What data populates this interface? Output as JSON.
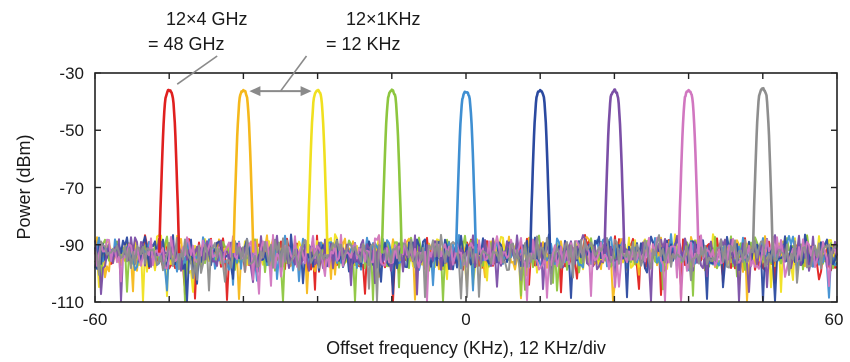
{
  "chart_data": {
    "type": "line",
    "xlabel": "Offset frequency (KHz), 12 KHz/div",
    "ylabel": "Power (dBm)",
    "xlim": [
      -60,
      60
    ],
    "ylim": [
      -110,
      -30
    ],
    "xticks": [
      -60,
      0,
      60
    ],
    "yticks": [
      -30,
      -50,
      -70,
      -90,
      -110
    ],
    "noise_floor_dbm": -93,
    "grid": false,
    "legend": "none",
    "series": [
      {
        "center_khz": -48,
        "peak_dbm": -36,
        "color": "#e0201f"
      },
      {
        "center_khz": -36,
        "peak_dbm": -36,
        "color": "#f5b81c"
      },
      {
        "center_khz": -24,
        "peak_dbm": -36,
        "color": "#f0e020"
      },
      {
        "center_khz": -12,
        "peak_dbm": -36,
        "color": "#8dc63f"
      },
      {
        "center_khz": 0,
        "peak_dbm": -36.5,
        "color": "#3f8fd2"
      },
      {
        "center_khz": 12,
        "peak_dbm": -36,
        "color": "#2b4aa0"
      },
      {
        "center_khz": 24,
        "peak_dbm": -36,
        "color": "#7b4fa6"
      },
      {
        "center_khz": 36,
        "peak_dbm": -36,
        "color": "#d177c0"
      },
      {
        "center_khz": 48,
        "peak_dbm": -35.5,
        "color": "#8e8e8e"
      }
    ],
    "annotations": [
      {
        "line1": "12×4 GHz",
        "line2": "= 48 GHz",
        "target_khz": -48
      },
      {
        "line1": "12×1KHz",
        "line2": "= 12 KHz",
        "from_khz": -36,
        "to_khz": -24
      }
    ]
  }
}
